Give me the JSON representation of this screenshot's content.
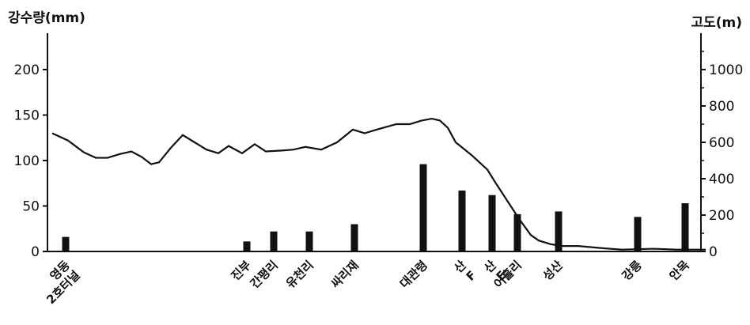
{
  "chart_data": {
    "type": "bar+line",
    "left_axis_title": "강수량(mm)",
    "right_axis_title": "고도(m)",
    "left_axis": {
      "ticks": [
        0,
        50,
        100,
        150,
        200
      ],
      "range": [
        0,
        240
      ]
    },
    "right_axis": {
      "ticks": [
        0,
        200,
        400,
        600,
        800,
        1000
      ],
      "range": [
        0,
        1200
      ]
    },
    "categories": [
      "영동 2호터널",
      "진부",
      "간평리",
      "유천리",
      "싸리재",
      "대관령",
      "산 F",
      "산 E",
      "어흘리",
      "성산",
      "강릉",
      "안목"
    ],
    "precipitation_mm": [
      16,
      11,
      22,
      22,
      30,
      96,
      67,
      62,
      41,
      44,
      38,
      53
    ],
    "altitude_profile_m": [
      [
        0,
        650
      ],
      [
        20,
        610
      ],
      [
        40,
        545
      ],
      [
        55,
        515
      ],
      [
        70,
        515
      ],
      [
        85,
        535
      ],
      [
        100,
        550
      ],
      [
        113,
        520
      ],
      [
        125,
        480
      ],
      [
        135,
        490
      ],
      [
        150,
        570
      ],
      [
        165,
        640
      ],
      [
        180,
        600
      ],
      [
        195,
        560
      ],
      [
        210,
        540
      ],
      [
        223,
        580
      ],
      [
        240,
        540
      ],
      [
        256,
        590
      ],
      [
        270,
        550
      ],
      [
        290,
        555
      ],
      [
        305,
        560
      ],
      [
        320,
        575
      ],
      [
        340,
        560
      ],
      [
        360,
        600
      ],
      [
        380,
        670
      ],
      [
        395,
        650
      ],
      [
        410,
        670
      ],
      [
        435,
        700
      ],
      [
        452,
        700
      ],
      [
        467,
        720
      ],
      [
        480,
        730
      ],
      [
        490,
        720
      ],
      [
        500,
        680
      ],
      [
        510,
        600
      ],
      [
        530,
        530
      ],
      [
        550,
        450
      ],
      [
        560,
        380
      ],
      [
        575,
        280
      ],
      [
        590,
        180
      ],
      [
        605,
        90
      ],
      [
        615,
        60
      ],
      [
        630,
        40
      ],
      [
        645,
        30
      ],
      [
        665,
        30
      ],
      [
        690,
        20
      ],
      [
        720,
        10
      ],
      [
        760,
        15
      ],
      [
        790,
        10
      ],
      [
        826,
        10
      ]
    ]
  }
}
